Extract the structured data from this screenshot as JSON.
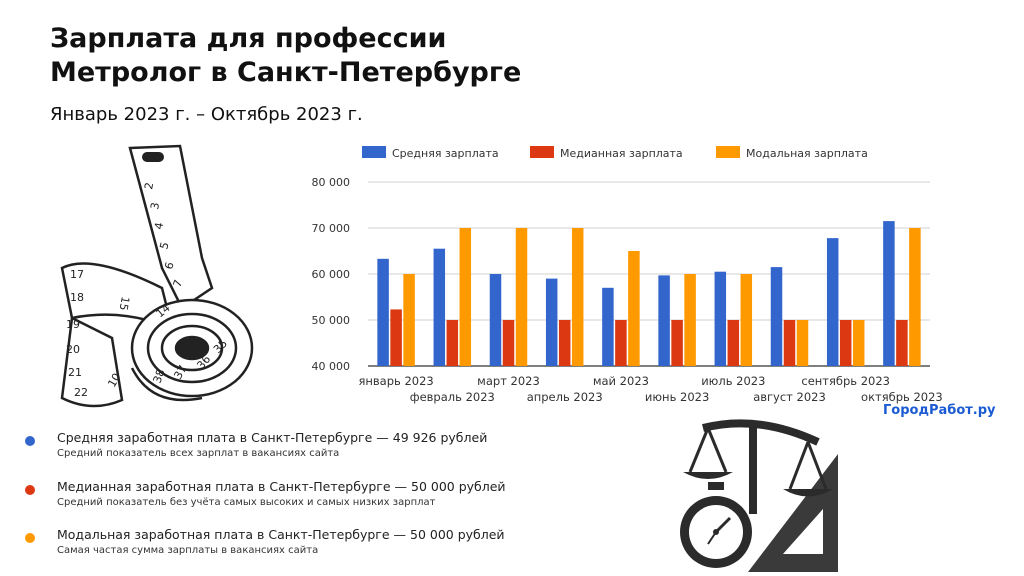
{
  "title_line1": "Зарплата для профессии",
  "title_line2": "Метролог в Санкт-Петербурге",
  "period": "Январь 2023 г. – Октябрь 2023 г.",
  "brand": "ГородРабот.ру",
  "colors": {
    "avg": "#3366cc",
    "median": "#dc3912",
    "modal": "#ff9900"
  },
  "info": [
    {
      "heading": "Средняя заработная плата в Санкт-Петербурге — 49 926 рублей",
      "sub": "Средний показатель всех зарплат в вакансиях сайта",
      "color": "#3366cc"
    },
    {
      "heading": "Медианная заработная плата в Санкт-Петербурге — 50 000 рублей",
      "sub": "Средний показатель без учёта самых высоких и самых низких зарплат",
      "color": "#dc3912"
    },
    {
      "heading": "Модальная заработная плата в Санкт-Петербурге — 50 000 рублей",
      "sub": "Самая частая сумма зарплаты в вакансиях сайта",
      "color": "#ff9900"
    }
  ],
  "tape_numbers": [
    "2",
    "3",
    "4",
    "5",
    "6",
    "7",
    "17",
    "18",
    "19",
    "20",
    "21",
    "22",
    "15",
    "14",
    "10",
    "38",
    "37",
    "36",
    "35"
  ],
  "chart_data": {
    "type": "bar",
    "categories": [
      "январь 2023",
      "февраль 2023",
      "март 2023",
      "апрель 2023",
      "май 2023",
      "июнь 2023",
      "июль 2023",
      "август 2023",
      "сентябрь 2023",
      "октябрь 2023"
    ],
    "series": [
      {
        "name": "Средняя зарплата",
        "color": "#3366cc",
        "values": [
          63300,
          65500,
          60000,
          59000,
          57000,
          59700,
          60500,
          61500,
          67800,
          71500
        ]
      },
      {
        "name": "Медианная зарплата",
        "color": "#dc3912",
        "values": [
          52300,
          50000,
          50000,
          50000,
          50000,
          50000,
          50000,
          50000,
          50000,
          50000
        ]
      },
      {
        "name": "Модальная зарплата",
        "color": "#ff9900",
        "values": [
          60000,
          70000,
          70000,
          70000,
          65000,
          60000,
          60000,
          50000,
          50000,
          70000
        ]
      }
    ],
    "yticks": [
      "40 000",
      "50 000",
      "60 000",
      "70 000",
      "80 000"
    ],
    "ylim": [
      40000,
      80000
    ],
    "grid": true,
    "legend": "top"
  }
}
